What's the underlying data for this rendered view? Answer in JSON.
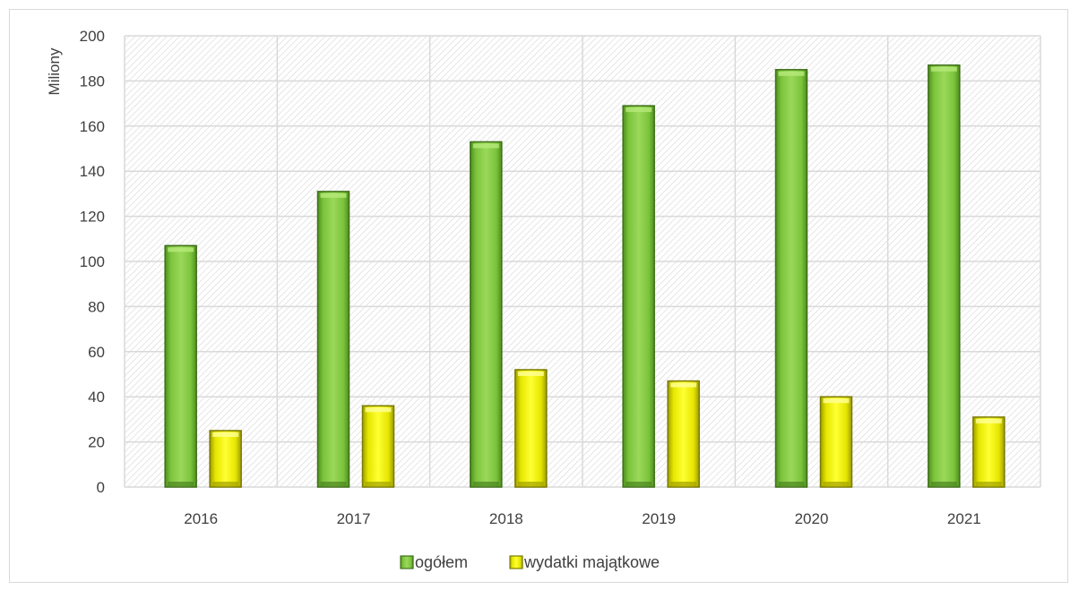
{
  "chart_data": {
    "type": "bar",
    "title": "",
    "xlabel": "",
    "ylabel": "Miliony",
    "ylim": [
      0,
      200
    ],
    "yticks": [
      0,
      20,
      40,
      60,
      80,
      100,
      120,
      140,
      160,
      180,
      200
    ],
    "categories": [
      "2016",
      "2017",
      "2018",
      "2019",
      "2020",
      "2021"
    ],
    "series": [
      {
        "name": "ogółem",
        "values": [
          107,
          131,
          153,
          169,
          185,
          187
        ],
        "color": "#7dc242"
      },
      {
        "name": "wydatki majątkowe",
        "values": [
          25,
          36,
          52,
          47,
          40,
          31
        ],
        "color": "#f2f200"
      }
    ],
    "grid": true,
    "legend": "bottom-center"
  }
}
